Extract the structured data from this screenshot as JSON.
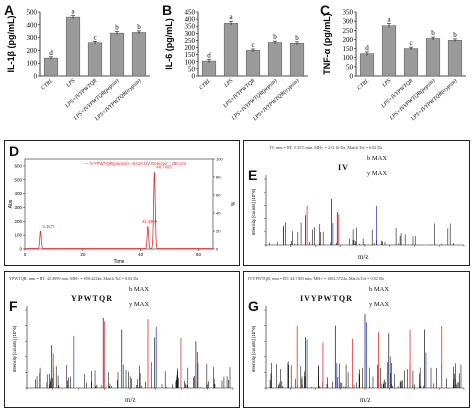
{
  "bar_panels": [
    {
      "letter": "A",
      "ylabel": "IL-1β (pg/mL)",
      "yticks": [
        "0",
        "100",
        "200",
        "300",
        "400",
        "500"
      ]
    },
    {
      "letter": "B",
      "ylabel": "IL-6 (pg/mL)",
      "yticks": [
        "0",
        "50",
        "100",
        "150",
        "200",
        "250",
        "300",
        "350",
        "400",
        "450"
      ]
    },
    {
      "letter": "C",
      "ylabel": "TNF-α (pg/mL)",
      "yticks": [
        "0",
        "50",
        "100",
        "150",
        "200",
        "250",
        "300",
        "350"
      ]
    }
  ],
  "chromatogram": {
    "letter": "D",
    "legend": "— IVYPWTQR(pepsin)--:6419 UV Detector : 280 nm",
    "yaxis_left": "Abs",
    "yaxis_right": "%",
    "xlabel": "Time",
    "yticks": [
      "0",
      "100",
      "200",
      "300",
      "400",
      "500",
      "600"
    ],
    "xticks": [
      "0",
      "20",
      "40",
      "60"
    ],
    "peak_labels": [
      "5.357t",
      "42.4999",
      "44.7403"
    ],
    "right_ticks": [
      "100",
      "80",
      "60",
      "40",
      "20",
      "0"
    ]
  },
  "spectra": [
    {
      "letter": "E",
      "header": "IV, mm = RT: 5.357t min, MH+ = 213.16 Da, Match Tol = 0.02 Da",
      "sequence": "IV",
      "ion_labels": [
        "b MAX",
        "y MAX"
      ],
      "ylabel": "Intensity [counts] (10^6)",
      "xlabel": "m/z"
    },
    {
      "letter": "F",
      "header": "YPWTQR, mm = RT: 42.4999 min, MH+ = 850.4224a, Match Tol = 0.02 Da",
      "sequence": "YPWTQR",
      "ion_labels": [
        "b MAX",
        "y MAX"
      ],
      "ylabel": "Intensity [counts] (10^6)",
      "xlabel": "m/z"
    },
    {
      "letter": "G",
      "header": "IVYPWTQR, mm = RT: 44.7403 min, MH+ = 1062.5724a, Match Tol = 0.02 Da",
      "sequence": "IVYPWTQR",
      "ion_labels": [
        "b MAX",
        "y MAX"
      ],
      "ylabel": "Intensity [counts] (10^6)",
      "xlabel": "m/z"
    }
  ],
  "colors": {
    "bar": "#9a9a9a",
    "chrom_line": "#e03030",
    "b_ion": "#e03030",
    "y_ion": "#3050c8",
    "spectrum": "#111111"
  },
  "chart_data": [
    {
      "type": "bar",
      "title": "",
      "ylabel": "IL-1β (pg/mL)",
      "ylim": [
        0,
        500
      ],
      "categories": [
        "CTRL",
        "LPS",
        "LPS+IVYPWTQR",
        "LPS+IVYPWTQR(pepsin)",
        "LPS+IVYPWTQR(trypsin)"
      ],
      "values": [
        140,
        460,
        260,
        335,
        340
      ],
      "errors": [
        10,
        12,
        10,
        12,
        12
      ],
      "letters": [
        "d",
        "a",
        "c",
        "b",
        "b"
      ]
    },
    {
      "type": "bar",
      "title": "",
      "ylabel": "IL-6 (pg/mL)",
      "ylim": [
        0,
        450
      ],
      "categories": [
        "CTRL",
        "LPS",
        "LPS+IVYPWTQR",
        "LPS+IVYPWTQR(pepsin)",
        "LPS+IVYPWTQR(trypsin)"
      ],
      "values": [
        105,
        370,
        180,
        235,
        230
      ],
      "errors": [
        12,
        15,
        10,
        10,
        10
      ],
      "letters": [
        "d",
        "a",
        "c",
        "b",
        "b"
      ]
    },
    {
      "type": "bar",
      "title": "",
      "ylabel": "TNF-α (pg/mL)",
      "ylim": [
        0,
        350
      ],
      "categories": [
        "CTRL",
        "LPS",
        "LPS+IVYPWTQR",
        "LPS+IVYPWTQR(pepsin)",
        "LPS+IVYPWTQR(trypsin)"
      ],
      "values": [
        122,
        275,
        150,
        205,
        195
      ],
      "errors": [
        10,
        12,
        8,
        8,
        8
      ],
      "letters": [
        "d",
        "a",
        "c",
        "b",
        "b"
      ]
    },
    {
      "type": "line",
      "title": "",
      "xlabel": "Time",
      "ylabel": "Abs",
      "xlim": [
        0,
        65
      ],
      "ylim": [
        0,
        650
      ],
      "series": [
        {
          "name": "IVYPWTQR(pepsin)",
          "points": [
            [
              0,
              3
            ],
            [
              5.357,
              130
            ],
            [
              42.4999,
              165
            ],
            [
              44.7403,
              560
            ],
            [
              65,
              3
            ]
          ]
        }
      ]
    }
  ]
}
